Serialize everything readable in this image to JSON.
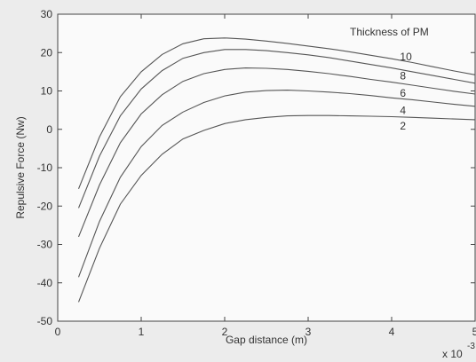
{
  "chart_data": {
    "type": "line",
    "title": "",
    "xlabel": "Gap distance (m)",
    "ylabel": "Repulsive Force (Nw)",
    "x_multiplier": "x 10",
    "x_multiplier_exp": "-3",
    "xlim": [
      0,
      5
    ],
    "ylim": [
      -50,
      30
    ],
    "xticks": [
      0,
      1,
      2,
      3,
      4,
      5
    ],
    "yticks": [
      -50,
      -40,
      -30,
      -20,
      -10,
      0,
      10,
      20,
      30
    ],
    "grid": false,
    "legend_title": "Thickness of PM",
    "line_color": "#555555",
    "series": [
      {
        "name": "10",
        "x": [
          0.25,
          0.5,
          0.75,
          1.0,
          1.25,
          1.5,
          1.75,
          2.0,
          2.25,
          2.5,
          2.75,
          3.0,
          3.25,
          3.5,
          3.75,
          4.0,
          4.25,
          4.5,
          4.75,
          5.0
        ],
        "y": [
          -15.5,
          -2,
          8.5,
          15,
          19.5,
          22.3,
          23.6,
          23.8,
          23.5,
          23,
          22.4,
          21.7,
          21,
          20.2,
          19.3,
          18.4,
          17.4,
          16.3,
          15.2,
          14.2
        ]
      },
      {
        "name": "8",
        "x": [
          0.25,
          0.5,
          0.75,
          1.0,
          1.25,
          1.5,
          1.75,
          2.0,
          2.25,
          2.5,
          2.75,
          3.0,
          3.25,
          3.5,
          3.75,
          4.0,
          4.25,
          4.5,
          4.75,
          5.0
        ],
        "y": [
          -20.5,
          -7,
          3.5,
          10.5,
          15.3,
          18.5,
          20,
          20.8,
          20.8,
          20.5,
          20,
          19.4,
          18.7,
          17.8,
          16.9,
          16,
          15,
          14,
          13,
          12
        ]
      },
      {
        "name": "6",
        "x": [
          0.25,
          0.5,
          0.75,
          1.0,
          1.25,
          1.5,
          1.75,
          2.0,
          2.25,
          2.5,
          2.75,
          3.0,
          3.25,
          3.5,
          3.75,
          4.0,
          4.25,
          4.5,
          4.75,
          5.0
        ],
        "y": [
          -28,
          -14.5,
          -3.5,
          4,
          9,
          12.5,
          14.5,
          15.6,
          16,
          15.9,
          15.6,
          15.1,
          14.5,
          13.8,
          13,
          12.3,
          11.5,
          10.7,
          9.9,
          9.2
        ]
      },
      {
        "name": "4",
        "x": [
          0.25,
          0.5,
          0.75,
          1.0,
          1.25,
          1.5,
          1.75,
          2.0,
          2.25,
          2.5,
          2.75,
          3.0,
          3.25,
          3.5,
          3.75,
          4.0,
          4.25,
          4.5,
          4.75,
          5.0
        ],
        "y": [
          -38.5,
          -24,
          -12.5,
          -4.5,
          1,
          4.5,
          7,
          8.7,
          9.7,
          10.1,
          10.2,
          10,
          9.7,
          9.3,
          8.8,
          8.2,
          7.7,
          7.1,
          6.5,
          6
        ]
      },
      {
        "name": "2",
        "x": [
          0.25,
          0.5,
          0.75,
          1.0,
          1.25,
          1.5,
          1.75,
          2.0,
          2.25,
          2.5,
          2.75,
          3.0,
          3.25,
          3.5,
          3.75,
          4.0,
          4.25,
          4.5,
          4.75,
          5.0
        ],
        "y": [
          -45,
          -31,
          -19.5,
          -12,
          -6.5,
          -2.5,
          -0.3,
          1.5,
          2.5,
          3.1,
          3.5,
          3.6,
          3.6,
          3.5,
          3.4,
          3.3,
          3.1,
          2.9,
          2.7,
          2.5
        ]
      }
    ],
    "labels": [
      {
        "text": "10",
        "x": 4.1,
        "y": 18.0
      },
      {
        "text": "8",
        "x": 4.1,
        "y": 13.0
      },
      {
        "text": "6",
        "x": 4.1,
        "y": 8.5
      },
      {
        "text": "4",
        "x": 4.1,
        "y": 4.0
      },
      {
        "text": "2",
        "x": 4.1,
        "y": 0.0
      }
    ],
    "legend_title_pos": {
      "x": 3.5,
      "y": 24.5
    }
  }
}
